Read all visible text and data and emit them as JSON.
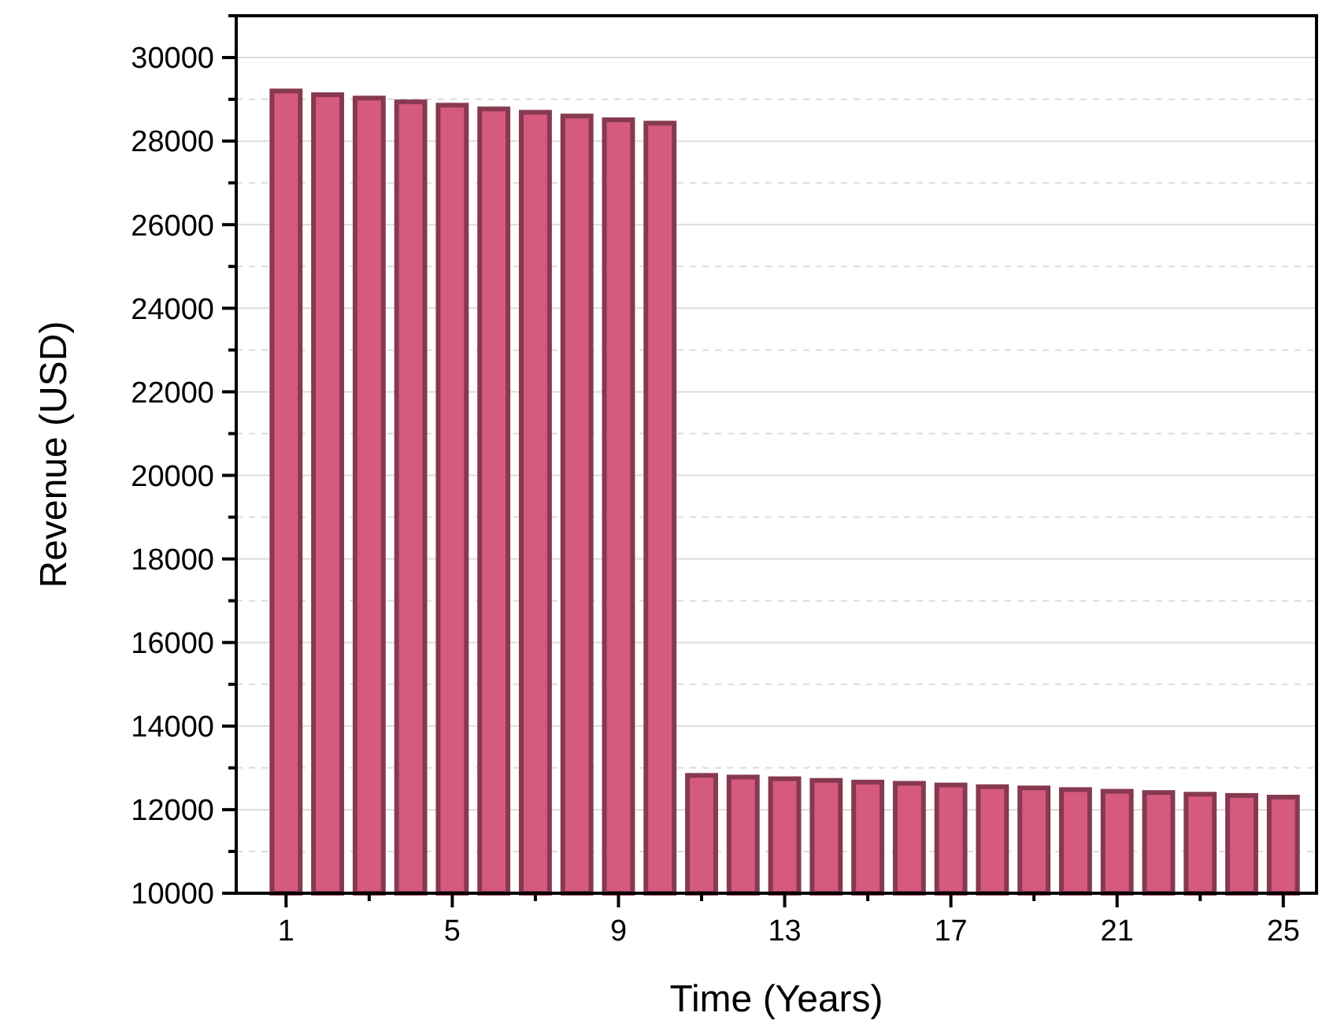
{
  "chart_data": {
    "type": "bar",
    "xlabel": "Time (Years)",
    "ylabel": "Revenue (USD)",
    "x": [
      1,
      2,
      3,
      4,
      5,
      6,
      7,
      8,
      9,
      10,
      11,
      12,
      13,
      14,
      15,
      16,
      17,
      18,
      19,
      20,
      21,
      22,
      23,
      24,
      25
    ],
    "series": [
      {
        "color": "#d55a7e",
        "values": [
          29200,
          29110,
          29030,
          28940,
          28860,
          28770,
          28690,
          28600,
          28510,
          28430,
          12820,
          12780,
          12740,
          12700,
          12660,
          12630,
          12590,
          12550,
          12520,
          12480,
          12440,
          12410,
          12370,
          12340,
          12300
        ]
      }
    ],
    "xlim": [
      -0.2,
      25.8
    ],
    "xticks": [
      1,
      {
        "value": 3,
        "label": null
      },
      5,
      {
        "value": 7,
        "label": null
      },
      9,
      {
        "value": 11,
        "label": null
      },
      13,
      {
        "value": 15,
        "label": null
      },
      17,
      {
        "value": 19,
        "label": null
      },
      21,
      {
        "value": 23,
        "label": null
      },
      25
    ],
    "ylim": [
      10000,
      31000
    ],
    "yticks": [
      10000,
      {
        "value": 11000,
        "label": null
      },
      12000,
      {
        "value": 13000,
        "label": null
      },
      14000,
      {
        "value": 15000,
        "label": null
      },
      16000,
      {
        "value": 17000,
        "label": null
      },
      18000,
      {
        "value": 19000,
        "label": null
      },
      20000,
      {
        "value": 21000,
        "label": null
      },
      22000,
      {
        "value": 23000,
        "label": null
      },
      24000,
      {
        "value": 25000,
        "label": null
      },
      26000,
      {
        "value": 27000,
        "label": null
      },
      28000,
      {
        "value": 29000,
        "label": null
      },
      30000,
      {
        "value": 31000,
        "label": null
      }
    ],
    "grid": "y"
  }
}
